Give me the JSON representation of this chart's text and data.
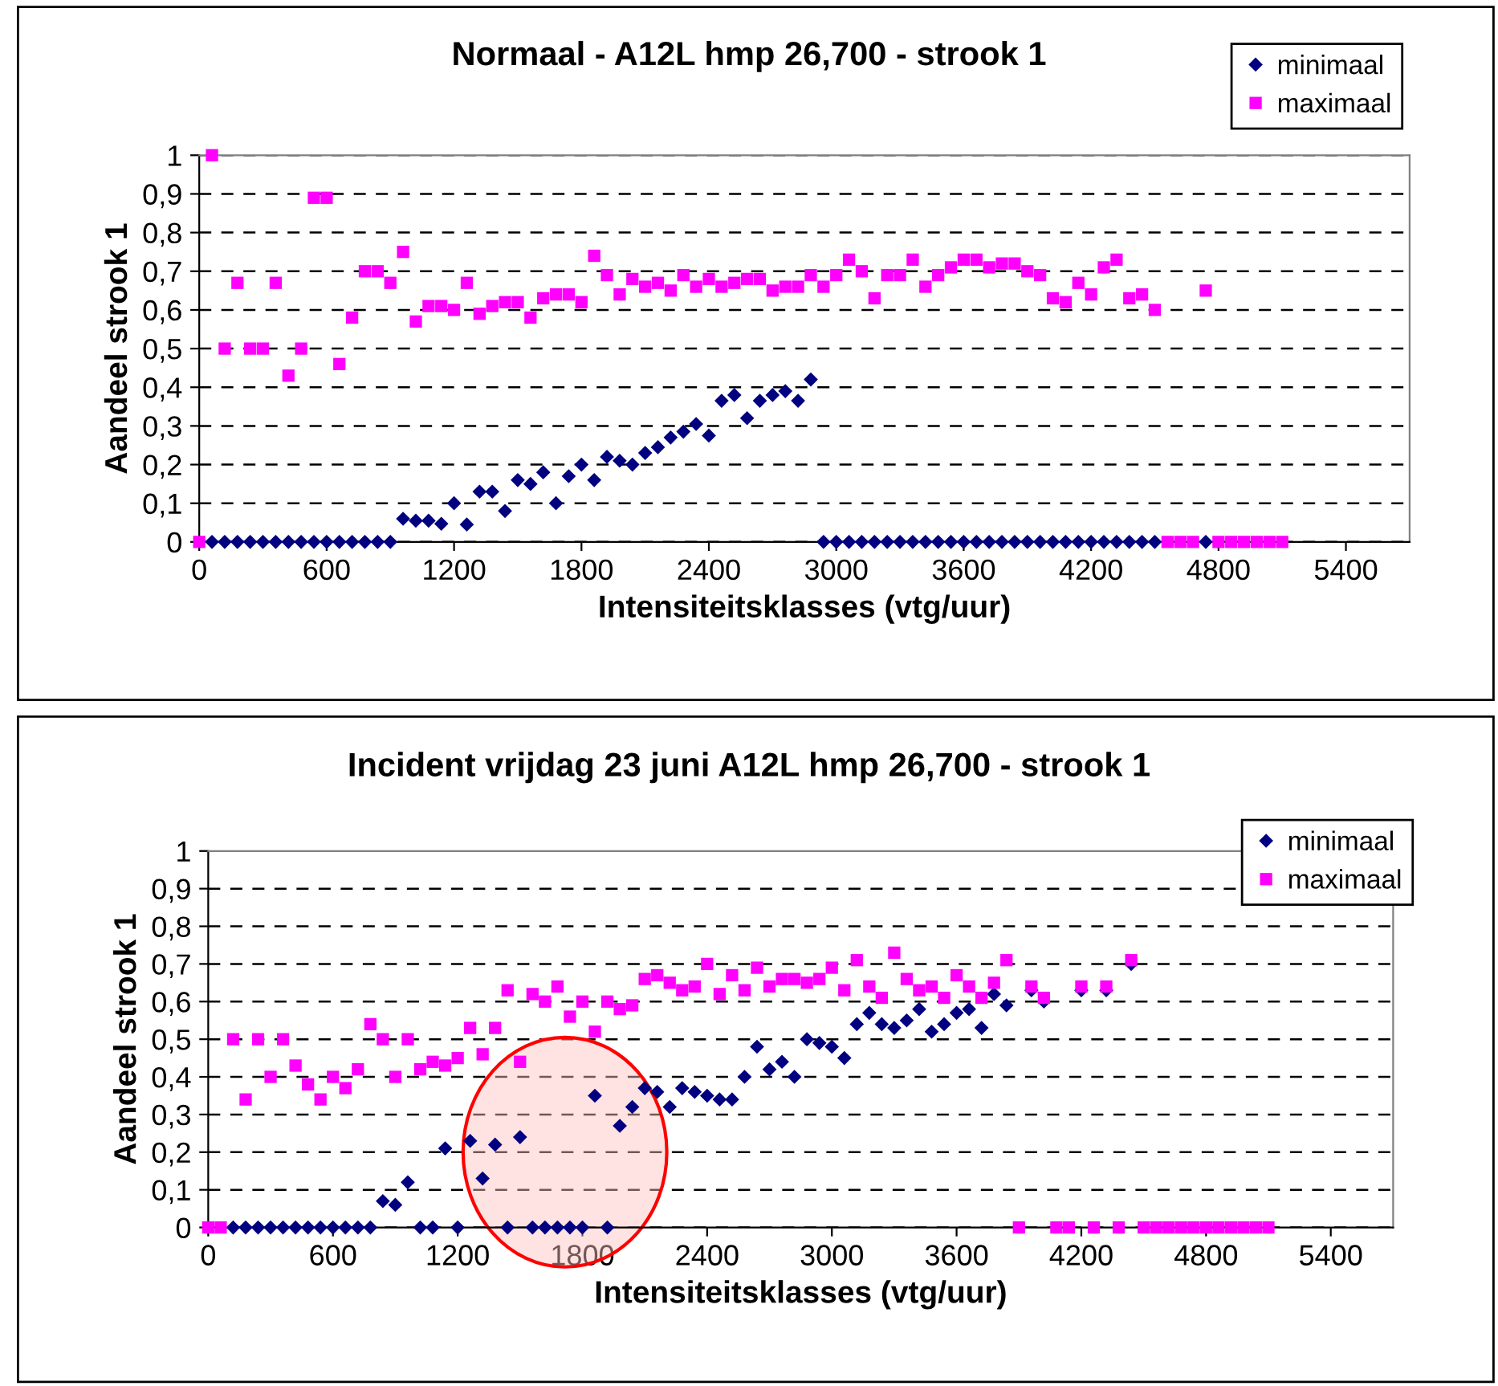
{
  "chart_data": [
    {
      "type": "scatter",
      "title": "Normaal - A12L hmp 26,700 - strook 1",
      "xlabel": "Intensiteitsklasses (vtg/uur)",
      "ylabel": "Aandeel strook 1",
      "x": [
        0,
        60,
        120,
        180,
        240,
        300,
        360,
        420,
        480,
        540,
        600,
        660,
        720,
        780,
        840,
        900,
        960,
        1020,
        1080,
        1140,
        1200,
        1260,
        1320,
        1380,
        1440,
        1500,
        1560,
        1620,
        1680,
        1740,
        1800,
        1860,
        1920,
        1980,
        2040,
        2100,
        2160,
        2220,
        2280,
        2340,
        2400,
        2460,
        2520,
        2580,
        2640,
        2700,
        2760,
        2820,
        2880,
        2940,
        3000,
        3060,
        3120,
        3180,
        3240,
        3300,
        3360,
        3420,
        3480,
        3540,
        3600,
        3660,
        3720,
        3780,
        3840,
        3900,
        3960,
        4020,
        4080,
        4140,
        4200,
        4260,
        4320,
        4380,
        4440,
        4500,
        4560,
        4620,
        4680,
        4740,
        4800,
        4860,
        4920,
        4980,
        5040,
        5100
      ],
      "series": [
        {
          "name": "minimaal",
          "color": "#000080",
          "marker": "diamond",
          "values": [
            null,
            0,
            0,
            0,
            0,
            0,
            0,
            0,
            0,
            0,
            0,
            0,
            0,
            0,
            0,
            0,
            0.06,
            0.055,
            0.055,
            0.047,
            0.1,
            0.045,
            0.13,
            0.13,
            0.08,
            0.16,
            0.15,
            0.18,
            0.1,
            0.17,
            0.2,
            0.16,
            0.22,
            0.21,
            0.2,
            0.23,
            0.245,
            0.27,
            0.285,
            0.305,
            0.275,
            0.365,
            0.38,
            0.32,
            0.365,
            0.38,
            0.39,
            0.365,
            0.42,
            0,
            0,
            0,
            0,
            0,
            0,
            0,
            0,
            0,
            0,
            0,
            0,
            0,
            0,
            0,
            0,
            0,
            0,
            0,
            0,
            0,
            0,
            0,
            0,
            0,
            0,
            0,
            null,
            null,
            null,
            0,
            null,
            null,
            null,
            null,
            null,
            null
          ]
        },
        {
          "name": "maximaal",
          "color": "#ff00ff",
          "marker": "square",
          "values": [
            0,
            1,
            0.5,
            0.67,
            0.5,
            0.5,
            0.67,
            0.43,
            0.5,
            0.89,
            0.89,
            0.46,
            0.58,
            0.7,
            0.7,
            0.67,
            0.75,
            0.57,
            0.61,
            0.61,
            0.6,
            0.67,
            0.59,
            0.61,
            0.62,
            0.62,
            0.58,
            0.63,
            0.64,
            0.64,
            0.62,
            0.74,
            0.69,
            0.64,
            0.68,
            0.66,
            0.67,
            0.65,
            0.69,
            0.66,
            0.68,
            0.66,
            0.67,
            0.68,
            0.68,
            0.65,
            0.66,
            0.66,
            0.69,
            0.66,
            0.69,
            0.73,
            0.7,
            0.63,
            0.69,
            0.69,
            0.73,
            0.66,
            0.69,
            0.71,
            0.73,
            0.73,
            0.71,
            0.72,
            0.72,
            0.7,
            0.69,
            0.63,
            0.62,
            0.67,
            0.64,
            0.71,
            0.73,
            0.63,
            0.64,
            0.6,
            0,
            0,
            0,
            0.65,
            0,
            0,
            0,
            0,
            0,
            0
          ]
        }
      ],
      "xlim": [
        0,
        5700
      ],
      "xticks": [
        0,
        600,
        1200,
        1800,
        2400,
        3000,
        3600,
        4200,
        4800,
        5400
      ],
      "ylim": [
        0,
        1
      ],
      "yticks": [
        0,
        {
          "value": 0.1,
          "label": "0,1"
        },
        {
          "value": 0.2,
          "label": "0,2"
        },
        {
          "value": 0.3,
          "label": "0,3"
        },
        {
          "value": 0.4,
          "label": "0,4"
        },
        {
          "value": 0.5,
          "label": "0,5"
        },
        {
          "value": 0.6,
          "label": "0,6"
        },
        {
          "value": 0.7,
          "label": "0,7"
        },
        {
          "value": 0.8,
          "label": "0,8"
        },
        {
          "value": 0.9,
          "label": "0,9"
        },
        1
      ],
      "grid": "y",
      "line_style": "dashed",
      "legend": "top right"
    },
    {
      "type": "scatter",
      "title": "Incident vrijdag 23 juni A12L hmp 26,700 - strook 1",
      "xlabel": "Intensiteitsklasses (vtg/uur)",
      "ylabel": "Aandeel strook 1",
      "x": [
        0,
        60,
        120,
        180,
        240,
        300,
        360,
        420,
        480,
        540,
        600,
        660,
        720,
        780,
        840,
        900,
        960,
        1020,
        1080,
        1140,
        1200,
        1260,
        1320,
        1380,
        1440,
        1500,
        1560,
        1620,
        1680,
        1740,
        1800,
        1860,
        1920,
        1980,
        2040,
        2100,
        2160,
        2220,
        2280,
        2340,
        2400,
        2460,
        2520,
        2580,
        2640,
        2700,
        2760,
        2820,
        2880,
        2940,
        3000,
        3060,
        3120,
        3180,
        3240,
        3300,
        3360,
        3420,
        3480,
        3540,
        3600,
        3660,
        3720,
        3780,
        3840,
        3900,
        3960,
        4020,
        4080,
        4140,
        4200,
        4260,
        4320,
        4380,
        4440,
        4500,
        4560,
        4620,
        4680,
        4740,
        4800,
        4860,
        4920,
        4980,
        5040,
        5100
      ],
      "series": [
        {
          "name": "minimaal",
          "color": "#000080",
          "marker": "diamond",
          "values": [
            null,
            null,
            0,
            0,
            0,
            0,
            0,
            0,
            0,
            0,
            0,
            0,
            0,
            0,
            0.07,
            0.06,
            0.12,
            0,
            0,
            0.21,
            0,
            0.23,
            0.13,
            0.22,
            0,
            0.24,
            0,
            0,
            0,
            0,
            0,
            0.35,
            0,
            0.27,
            0.32,
            0.37,
            0.36,
            0.32,
            0.37,
            0.36,
            0.35,
            0.34,
            0.34,
            0.4,
            0.48,
            0.42,
            0.44,
            0.4,
            0.5,
            0.49,
            0.48,
            0.45,
            0.54,
            0.57,
            0.54,
            0.53,
            0.55,
            0.58,
            0.52,
            0.54,
            0.57,
            0.58,
            0.53,
            0.62,
            0.59,
            null,
            0.63,
            0.6,
            null,
            null,
            0.63,
            null,
            0.63,
            null,
            0.7,
            null,
            null,
            null,
            null,
            null,
            null,
            null,
            null,
            null,
            null,
            null
          ]
        },
        {
          "name": "maximaal",
          "color": "#ff00ff",
          "marker": "square",
          "values": [
            0,
            0,
            0.5,
            0.34,
            0.5,
            0.4,
            0.5,
            0.43,
            0.38,
            0.34,
            0.4,
            0.37,
            0.42,
            0.54,
            0.5,
            0.4,
            0.5,
            0.42,
            0.44,
            0.43,
            0.45,
            0.53,
            0.46,
            0.53,
            0.63,
            0.44,
            0.62,
            0.6,
            0.64,
            0.56,
            0.6,
            0.52,
            0.6,
            0.58,
            0.59,
            0.66,
            0.67,
            0.65,
            0.63,
            0.64,
            0.7,
            0.62,
            0.67,
            0.63,
            0.69,
            0.64,
            0.66,
            0.66,
            0.65,
            0.66,
            0.69,
            0.63,
            0.71,
            0.64,
            0.61,
            0.73,
            0.66,
            0.63,
            0.64,
            0.61,
            0.67,
            0.64,
            0.61,
            0.65,
            0.71,
            0,
            0.64,
            0.61,
            0,
            0,
            0.64,
            0,
            0.64,
            0,
            0.71,
            0,
            0,
            0,
            0,
            0,
            0,
            0,
            0,
            0,
            0,
            0
          ]
        }
      ],
      "xlim": [
        0,
        5700
      ],
      "xticks": [
        0,
        600,
        1200,
        1800,
        2400,
        3000,
        3600,
        4200,
        4800,
        5400
      ],
      "ylim": [
        0,
        1
      ],
      "yticks": [
        0,
        {
          "value": 0.1,
          "label": "0,1"
        },
        {
          "value": 0.2,
          "label": "0,2"
        },
        {
          "value": 0.3,
          "label": "0,3"
        },
        {
          "value": 0.4,
          "label": "0,4"
        },
        {
          "value": 0.5,
          "label": "0,5"
        },
        {
          "value": 0.6,
          "label": "0,6"
        },
        {
          "value": 0.7,
          "label": "0,7"
        },
        {
          "value": 0.8,
          "label": "0,8"
        },
        {
          "value": 0.9,
          "label": "0,9"
        },
        1
      ],
      "grid": "y",
      "line_style": "dashed",
      "legend": "top right"
    }
  ]
}
